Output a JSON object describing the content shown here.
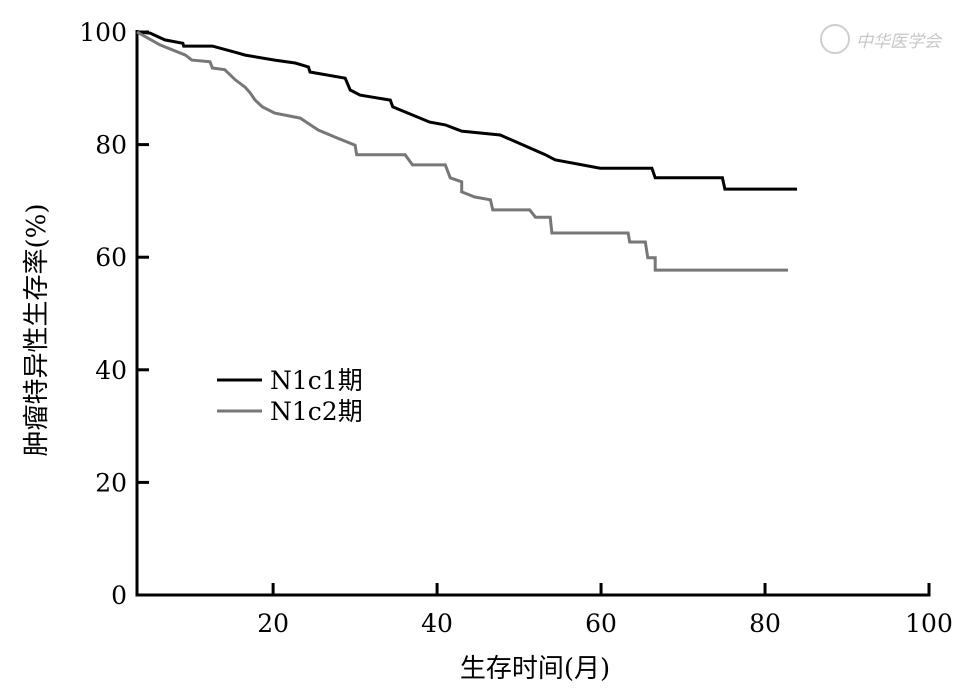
{
  "watermark": "中华医学会",
  "chart_data": {
    "type": "line",
    "subtype": "kaplan-meier",
    "title": "",
    "xlabel": "生存时间(月)",
    "ylabel": "肿瘤特异性生存率(%)",
    "xlim": [
      3.4,
      100
    ],
    "ylim": [
      0,
      100
    ],
    "xticks": [
      20,
      40,
      60,
      80,
      100
    ],
    "yticks": [
      0,
      20,
      40,
      60,
      80,
      100
    ],
    "grid": false,
    "legend_position": "middle-left",
    "series": [
      {
        "name": "N1c1期",
        "color": "#000000",
        "points": [
          [
            3.4,
            100
          ],
          [
            5.0,
            99.8
          ],
          [
            6.8,
            98.6
          ],
          [
            9.0,
            98
          ],
          [
            9.1,
            97.5
          ],
          [
            12.6,
            97.5
          ],
          [
            15.4,
            96.4
          ],
          [
            16.6,
            95.9
          ],
          [
            20.2,
            95.0
          ],
          [
            22.7,
            94.5
          ],
          [
            24.3,
            93.8
          ],
          [
            24.5,
            92.9
          ],
          [
            28.8,
            91.8
          ],
          [
            29.4,
            89.7
          ],
          [
            30.6,
            88.8
          ],
          [
            34.3,
            87.9
          ],
          [
            34.6,
            86.7
          ],
          [
            39.1,
            84.0
          ],
          [
            41.0,
            83.5
          ],
          [
            43.0,
            82.4
          ],
          [
            47.7,
            81.7
          ],
          [
            53.2,
            78.2
          ],
          [
            54.4,
            77.3
          ],
          [
            59.9,
            75.8
          ],
          [
            66.2,
            75.8
          ],
          [
            66.6,
            74.1
          ],
          [
            74.8,
            74.1
          ],
          [
            75.1,
            72.1
          ],
          [
            83.9,
            72.1
          ]
        ]
      },
      {
        "name": "N1c2期",
        "color": "#777777",
        "points": [
          [
            3.4,
            100
          ],
          [
            6.2,
            97.7
          ],
          [
            9.3,
            95.9
          ],
          [
            10.1,
            95
          ],
          [
            12.3,
            94.7
          ],
          [
            12.6,
            93.6
          ],
          [
            14.1,
            93.3
          ],
          [
            15.4,
            91.5
          ],
          [
            16.6,
            90.2
          ],
          [
            17.2,
            89.2
          ],
          [
            17.8,
            87.9
          ],
          [
            18.7,
            86.7
          ],
          [
            20.2,
            85.6
          ],
          [
            23.3,
            84.7
          ],
          [
            25.5,
            82.6
          ],
          [
            27.6,
            81.3
          ],
          [
            30.0,
            79.9
          ],
          [
            30.2,
            78.2
          ],
          [
            36.1,
            78.2
          ],
          [
            37.0,
            76.4
          ],
          [
            41.0,
            76.4
          ],
          [
            41.6,
            74.1
          ],
          [
            43.0,
            73.4
          ],
          [
            43.0,
            71.6
          ],
          [
            44.6,
            70.7
          ],
          [
            46.5,
            70.2
          ],
          [
            46.8,
            68.4
          ],
          [
            51.3,
            68.4
          ],
          [
            52.0,
            67.1
          ],
          [
            53.8,
            67.1
          ],
          [
            54.0,
            64.3
          ],
          [
            63.3,
            64.3
          ],
          [
            63.5,
            62.7
          ],
          [
            65.4,
            62.7
          ],
          [
            65.7,
            59.9
          ],
          [
            66.6,
            59.9
          ],
          [
            66.6,
            57.7
          ],
          [
            82.8,
            57.7
          ]
        ]
      }
    ]
  }
}
